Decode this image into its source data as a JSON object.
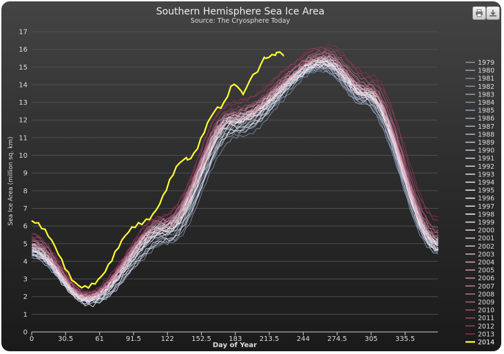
{
  "colors": {
    "grid": "#4f4f4f",
    "axis": "#cfcfcf",
    "text": "#dddddd",
    "title": "#eeeeee",
    "highlight": "#ffff33"
  },
  "toolbar": {
    "print_icon": "printer-icon",
    "export_icon": "download-icon"
  },
  "chart_data": {
    "type": "line",
    "title": "Southern Hemisphere Sea Ice Area",
    "subtitle": "Source: The Cryosphere Today",
    "xlabel": "Day of Year",
    "ylabel": "Sea Ice Area (million sq. km)",
    "xlim": [
      0,
      365
    ],
    "ylim": [
      0,
      17
    ],
    "x_ticks": [
      "0",
      "30.5",
      "61",
      "91.5",
      "122",
      "152.5",
      "183",
      "213.5",
      "244",
      "274.5",
      "305",
      "335.5"
    ],
    "x_tick_values": [
      0,
      30.5,
      61,
      91.5,
      122,
      152.5,
      183,
      213.5,
      244,
      274.5,
      305,
      335.5
    ],
    "y_ticks": [
      "0",
      "1",
      "2",
      "3",
      "4",
      "5",
      "6",
      "7",
      "8",
      "9",
      "10",
      "11",
      "12",
      "13",
      "14",
      "15",
      "16",
      "17"
    ],
    "grid": true,
    "legend_position": "right",
    "series": [
      {
        "name": "1979",
        "color": "#8e95a6",
        "x": [
          0,
          50,
          120,
          180,
          262,
          300,
          365
        ],
        "y": [
          4.5,
          1.6,
          5.5,
          11.6,
          15.0,
          13.2,
          4.8
        ]
      },
      {
        "name": "1980",
        "color": "#9aa0b0",
        "x": [
          0,
          52,
          122,
          182,
          264,
          302,
          365
        ],
        "y": [
          4.7,
          1.7,
          5.2,
          11.2,
          15.3,
          13.5,
          5.0
        ]
      },
      {
        "name": "1981",
        "color": "#7e8aa2",
        "x": [
          0,
          49,
          118,
          178,
          260,
          298,
          365
        ],
        "y": [
          4.3,
          1.8,
          6.0,
          12.0,
          14.9,
          13.0,
          4.6
        ]
      },
      {
        "name": "1982",
        "color": "#8a93ad",
        "x": [
          0,
          51,
          121,
          181,
          265,
          301,
          365
        ],
        "y": [
          4.6,
          1.9,
          5.6,
          11.8,
          15.1,
          13.4,
          5.1
        ]
      },
      {
        "name": "1983",
        "color": "#95a0b8",
        "x": [
          0,
          50,
          120,
          180,
          263,
          299,
          365
        ],
        "y": [
          4.8,
          2.0,
          5.9,
          11.9,
          15.2,
          13.1,
          4.9
        ]
      },
      {
        "name": "1984",
        "color": "#7f93b8",
        "x": [
          0,
          53,
          124,
          184,
          262,
          300,
          365
        ],
        "y": [
          4.4,
          1.7,
          5.0,
          11.0,
          14.8,
          13.0,
          4.5
        ]
      },
      {
        "name": "1985",
        "color": "#8aa2c4",
        "x": [
          0,
          50,
          121,
          182,
          266,
          303,
          365
        ],
        "y": [
          4.9,
          1.8,
          5.4,
          11.4,
          15.4,
          13.6,
          5.2
        ]
      },
      {
        "name": "1986",
        "color": "#98aacb",
        "x": [
          0,
          48,
          118,
          179,
          261,
          298,
          365
        ],
        "y": [
          4.5,
          2.0,
          6.1,
          12.1,
          14.9,
          12.9,
          4.4
        ]
      },
      {
        "name": "1987",
        "color": "#a5b3d1",
        "x": [
          0,
          52,
          123,
          183,
          264,
          302,
          365
        ],
        "y": [
          4.2,
          1.6,
          5.1,
          11.3,
          15.0,
          13.3,
          4.7
        ]
      },
      {
        "name": "1988",
        "color": "#b0bcd8",
        "x": [
          0,
          51,
          122,
          181,
          262,
          300,
          365
        ],
        "y": [
          4.6,
          1.9,
          5.7,
          11.7,
          15.1,
          13.2,
          5.0
        ]
      },
      {
        "name": "1989",
        "color": "#bcc6de",
        "x": [
          0,
          50,
          120,
          180,
          263,
          301,
          365
        ],
        "y": [
          4.7,
          1.8,
          5.8,
          11.9,
          15.2,
          13.4,
          4.8
        ]
      },
      {
        "name": "1990",
        "color": "#c5cde4",
        "x": [
          0,
          49,
          119,
          180,
          262,
          299,
          365
        ],
        "y": [
          4.4,
          1.9,
          5.9,
          12.0,
          15.0,
          13.1,
          4.6
        ]
      },
      {
        "name": "1991",
        "color": "#cfd6e8",
        "x": [
          0,
          51,
          121,
          182,
          265,
          302,
          365
        ],
        "y": [
          4.8,
          1.8,
          5.5,
          11.6,
          15.3,
          13.5,
          5.0
        ]
      },
      {
        "name": "1992",
        "color": "#d8dced",
        "x": [
          0,
          52,
          122,
          183,
          264,
          301,
          365
        ],
        "y": [
          4.5,
          1.7,
          5.3,
          11.5,
          15.2,
          13.4,
          4.9
        ]
      },
      {
        "name": "1993",
        "color": "#e2e5f1",
        "x": [
          0,
          50,
          120,
          180,
          263,
          300,
          365
        ],
        "y": [
          4.9,
          2.0,
          6.0,
          12.1,
          15.4,
          13.5,
          5.1
        ]
      },
      {
        "name": "1994",
        "color": "#ebedf5",
        "x": [
          0,
          50,
          121,
          181,
          264,
          302,
          365
        ],
        "y": [
          4.6,
          1.9,
          5.7,
          11.9,
          15.5,
          13.7,
          5.2
        ]
      },
      {
        "name": "1995",
        "color": "#f2f2f8",
        "x": [
          0,
          49,
          119,
          179,
          262,
          300,
          365
        ],
        "y": [
          4.7,
          1.8,
          6.0,
          12.2,
          15.3,
          13.4,
          4.9
        ]
      },
      {
        "name": "1996",
        "color": "#f6f6fb",
        "x": [
          0,
          51,
          121,
          181,
          263,
          301,
          365
        ],
        "y": [
          4.4,
          1.7,
          5.6,
          11.8,
          15.1,
          13.3,
          4.7
        ]
      },
      {
        "name": "1997",
        "color": "#e8ecf6",
        "x": [
          0,
          52,
          123,
          183,
          265,
          302,
          365
        ],
        "y": [
          4.3,
          1.5,
          5.2,
          11.4,
          15.2,
          13.4,
          4.6
        ]
      },
      {
        "name": "1998",
        "color": "#ffffff",
        "x": [
          0,
          50,
          120,
          180,
          264,
          301,
          365
        ],
        "y": [
          4.8,
          1.9,
          5.9,
          12.0,
          15.4,
          13.6,
          5.0
        ]
      },
      {
        "name": "1999",
        "color": "#f3e3e8",
        "x": [
          0,
          50,
          121,
          181,
          263,
          301,
          365
        ],
        "y": [
          4.6,
          1.8,
          5.8,
          11.9,
          15.3,
          13.5,
          4.9
        ]
      },
      {
        "name": "2000",
        "color": "#eed8df",
        "x": [
          0,
          51,
          121,
          182,
          264,
          302,
          365
        ],
        "y": [
          4.9,
          1.9,
          5.7,
          11.8,
          15.4,
          13.6,
          5.1
        ]
      },
      {
        "name": "2001",
        "color": "#e8ccd6",
        "x": [
          0,
          49,
          119,
          180,
          262,
          300,
          365
        ],
        "y": [
          4.7,
          2.0,
          6.0,
          12.0,
          15.2,
          13.3,
          4.8
        ]
      },
      {
        "name": "2002",
        "color": "#e3c0cc",
        "x": [
          0,
          50,
          120,
          181,
          263,
          301,
          365
        ],
        "y": [
          4.5,
          1.8,
          5.8,
          11.9,
          15.1,
          13.4,
          4.9
        ]
      },
      {
        "name": "2003",
        "color": "#ddb4c2",
        "x": [
          0,
          50,
          120,
          180,
          264,
          302,
          365
        ],
        "y": [
          5.0,
          2.0,
          6.1,
          12.1,
          15.5,
          13.7,
          5.2
        ]
      },
      {
        "name": "2004",
        "color": "#d8a7b8",
        "x": [
          0,
          51,
          121,
          181,
          265,
          302,
          365
        ],
        "y": [
          4.8,
          1.9,
          5.9,
          12.0,
          15.6,
          13.8,
          5.3
        ]
      },
      {
        "name": "2005",
        "color": "#d19aae",
        "x": [
          0,
          50,
          120,
          180,
          263,
          301,
          365
        ],
        "y": [
          5.1,
          2.1,
          6.2,
          12.2,
          15.4,
          13.6,
          5.0
        ]
      },
      {
        "name": "2006",
        "color": "#ca8da3",
        "x": [
          0,
          49,
          119,
          179,
          264,
          302,
          365
        ],
        "y": [
          4.9,
          2.0,
          6.3,
          12.4,
          15.5,
          13.7,
          5.4
        ]
      },
      {
        "name": "2007",
        "color": "#c28098",
        "x": [
          0,
          50,
          120,
          180,
          265,
          303,
          365
        ],
        "y": [
          5.2,
          2.1,
          6.2,
          12.3,
          15.8,
          14.0,
          5.6
        ]
      },
      {
        "name": "2008",
        "color": "#ba738c",
        "x": [
          0,
          51,
          121,
          181,
          264,
          302,
          365
        ],
        "y": [
          5.0,
          2.0,
          6.0,
          12.1,
          15.6,
          13.8,
          5.4
        ]
      },
      {
        "name": "2009",
        "color": "#b26681",
        "x": [
          0,
          50,
          120,
          180,
          263,
          301,
          365
        ],
        "y": [
          5.3,
          2.1,
          6.3,
          12.4,
          15.7,
          13.9,
          5.6
        ]
      },
      {
        "name": "2010",
        "color": "#a95875",
        "x": [
          0,
          50,
          120,
          180,
          266,
          303,
          365
        ],
        "y": [
          5.4,
          2.2,
          6.4,
          12.5,
          15.9,
          14.2,
          5.9
        ]
      },
      {
        "name": "2011",
        "color": "#a14b6a",
        "x": [
          0,
          49,
          119,
          180,
          265,
          302,
          365
        ],
        "y": [
          5.1,
          2.1,
          6.4,
          12.6,
          15.8,
          14.0,
          5.8
        ]
      },
      {
        "name": "2012",
        "color": "#983d5e",
        "x": [
          0,
          50,
          119,
          179,
          266,
          304,
          365
        ],
        "y": [
          5.5,
          2.3,
          6.6,
          12.9,
          16.1,
          14.4,
          6.3
        ]
      },
      {
        "name": "2013",
        "color": "#8f2f52",
        "x": [
          0,
          50,
          119,
          179,
          267,
          305,
          365
        ],
        "y": [
          5.6,
          2.2,
          6.6,
          13.0,
          16.2,
          14.5,
          6.5
        ]
      },
      {
        "name": "2014",
        "color": "#ffff33",
        "x": [
          0,
          48,
          100,
          140,
          170,
          182,
          190,
          200,
          210,
          220,
          226
        ],
        "y": [
          6.3,
          2.5,
          6.2,
          9.8,
          12.8,
          14.0,
          13.5,
          14.6,
          15.5,
          15.8,
          15.7
        ]
      }
    ]
  }
}
